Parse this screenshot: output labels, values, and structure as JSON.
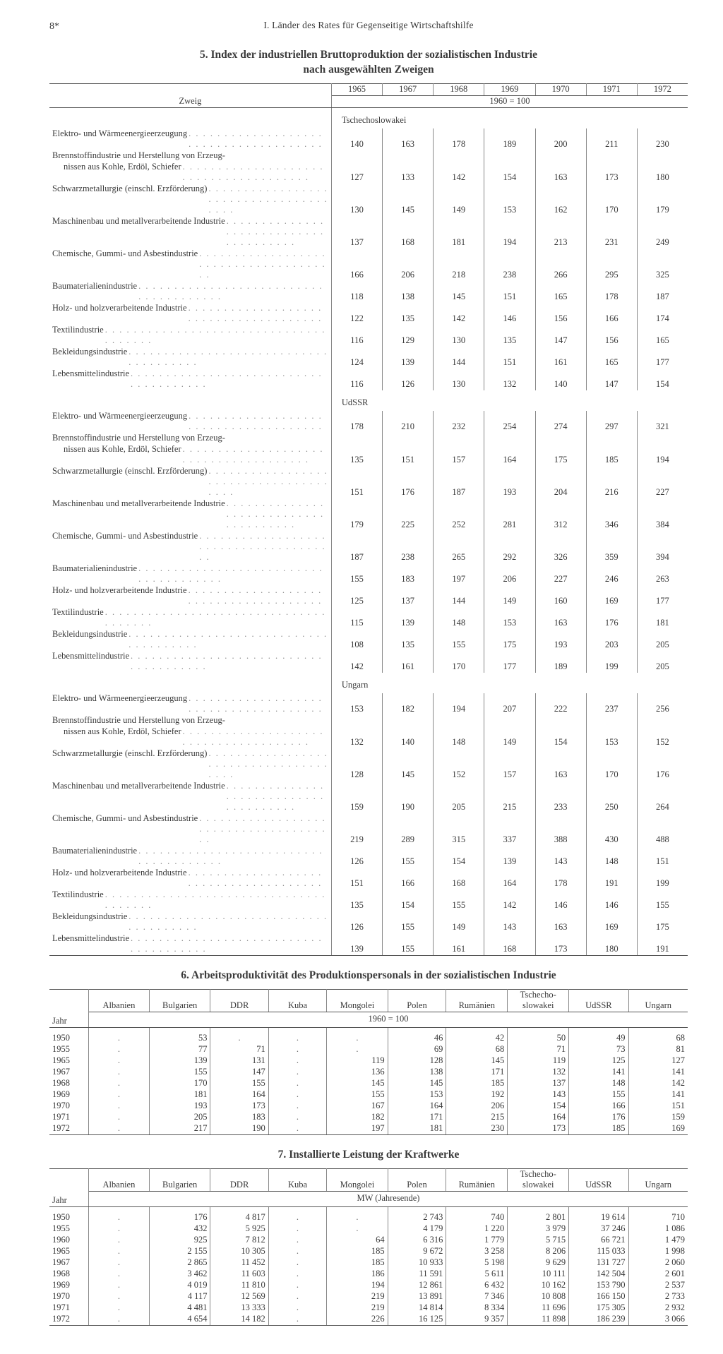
{
  "page_number": "8*",
  "running_head": "I. Länder des Rates für Gegenseitige Wirtschaftshilfe",
  "table5": {
    "title_l1": "5. Index der industriellen Bruttoproduktion der sozialistischen Industrie",
    "title_l2": "nach ausgewählten Zweigen",
    "stub_header": "Zweig",
    "years": [
      "1965",
      "1967",
      "1968",
      "1969",
      "1970",
      "1971",
      "1972"
    ],
    "base": "1960 = 100",
    "row_labels": [
      "Elektro- und Wärmeenergieerzeugung",
      "Brennstoffindustrie und Herstellung von Erzeug-",
      "nissen aus Kohle, Erdöl, Schiefer",
      "Schwarzmetallurgie (einschl. Erzförderung)",
      "Maschinenbau und metallverarbeitende Industrie",
      "Chemische, Gummi- und Asbestindustrie",
      "Baumaterialienindustrie",
      "Holz- und holzverarbeitende Industrie",
      "Textilindustrie",
      "Bekleidungsindustrie",
      "Lebensmittelindustrie"
    ],
    "sections": [
      {
        "country": "Tschechoslowakei",
        "rows": [
          [
            "140",
            "163",
            "178",
            "189",
            "200",
            "211",
            "230"
          ],
          null,
          [
            "127",
            "133",
            "142",
            "154",
            "163",
            "173",
            "180"
          ],
          [
            "130",
            "145",
            "149",
            "153",
            "162",
            "170",
            "179"
          ],
          [
            "137",
            "168",
            "181",
            "194",
            "213",
            "231",
            "249"
          ],
          [
            "166",
            "206",
            "218",
            "238",
            "266",
            "295",
            "325"
          ],
          [
            "118",
            "138",
            "145",
            "151",
            "165",
            "178",
            "187"
          ],
          [
            "122",
            "135",
            "142",
            "146",
            "156",
            "166",
            "174"
          ],
          [
            "116",
            "129",
            "130",
            "135",
            "147",
            "156",
            "165"
          ],
          [
            "124",
            "139",
            "144",
            "151",
            "161",
            "165",
            "177"
          ],
          [
            "116",
            "126",
            "130",
            "132",
            "140",
            "147",
            "154"
          ]
        ]
      },
      {
        "country": "UdSSR",
        "rows": [
          [
            "178",
            "210",
            "232",
            "254",
            "274",
            "297",
            "321"
          ],
          null,
          [
            "135",
            "151",
            "157",
            "164",
            "175",
            "185",
            "194"
          ],
          [
            "151",
            "176",
            "187",
            "193",
            "204",
            "216",
            "227"
          ],
          [
            "179",
            "225",
            "252",
            "281",
            "312",
            "346",
            "384"
          ],
          [
            "187",
            "238",
            "265",
            "292",
            "326",
            "359",
            "394"
          ],
          [
            "155",
            "183",
            "197",
            "206",
            "227",
            "246",
            "263"
          ],
          [
            "125",
            "137",
            "144",
            "149",
            "160",
            "169",
            "177"
          ],
          [
            "115",
            "139",
            "148",
            "153",
            "163",
            "176",
            "181"
          ],
          [
            "108",
            "135",
            "155",
            "175",
            "193",
            "203",
            "205"
          ],
          [
            "142",
            "161",
            "170",
            "177",
            "189",
            "199",
            "205"
          ]
        ]
      },
      {
        "country": "Ungarn",
        "rows": [
          [
            "153",
            "182",
            "194",
            "207",
            "222",
            "237",
            "256"
          ],
          null,
          [
            "132",
            "140",
            "148",
            "149",
            "154",
            "153",
            "152"
          ],
          [
            "128",
            "145",
            "152",
            "157",
            "163",
            "170",
            "176"
          ],
          [
            "159",
            "190",
            "205",
            "215",
            "233",
            "250",
            "264"
          ],
          [
            "219",
            "289",
            "315",
            "337",
            "388",
            "430",
            "488"
          ],
          [
            "126",
            "155",
            "154",
            "139",
            "143",
            "148",
            "151"
          ],
          [
            "151",
            "166",
            "168",
            "164",
            "178",
            "191",
            "199"
          ],
          [
            "135",
            "154",
            "155",
            "142",
            "146",
            "146",
            "155"
          ],
          [
            "126",
            "155",
            "149",
            "143",
            "163",
            "169",
            "175"
          ],
          [
            "139",
            "155",
            "161",
            "168",
            "173",
            "180",
            "191"
          ]
        ]
      }
    ]
  },
  "table6": {
    "title": "6. Arbeitsproduktivität des Produktionspersonals in der sozialistischen Industrie",
    "jahr": "Jahr",
    "base": "1960 = 100",
    "countries": [
      "Albanien",
      "Bulgarien",
      "DDR",
      "Kuba",
      "Mongolei",
      "Polen",
      "Rumänien",
      "Tschecho-\nslowakei",
      "UdSSR",
      "Ungarn"
    ],
    "years": [
      "1950",
      "1955",
      "1965",
      "1967",
      "1968",
      "1969",
      "1970",
      "1971",
      "1972"
    ],
    "values": [
      [
        ".",
        "53",
        ".",
        ".",
        ".",
        "46",
        "42",
        "50",
        "49",
        "68"
      ],
      [
        ".",
        "77",
        "71",
        ".",
        ".",
        "69",
        "68",
        "71",
        "73",
        "81"
      ],
      [
        ".",
        "139",
        "131",
        ".",
        "119",
        "128",
        "145",
        "119",
        "125",
        "127"
      ],
      [
        ".",
        "155",
        "147",
        ".",
        "136",
        "138",
        "171",
        "132",
        "141",
        "141"
      ],
      [
        ".",
        "170",
        "155",
        ".",
        "145",
        "145",
        "185",
        "137",
        "148",
        "142"
      ],
      [
        ".",
        "181",
        "164",
        ".",
        "155",
        "153",
        "192",
        "143",
        "155",
        "141"
      ],
      [
        ".",
        "193",
        "173",
        ".",
        "167",
        "164",
        "206",
        "154",
        "166",
        "151"
      ],
      [
        ".",
        "205",
        "183",
        ".",
        "182",
        "171",
        "215",
        "164",
        "176",
        "159"
      ],
      [
        ".",
        "217",
        "190",
        ".",
        "197",
        "181",
        "230",
        "173",
        "185",
        "169"
      ]
    ]
  },
  "table7": {
    "title": "7. Installierte Leistung der Kraftwerke",
    "jahr": "Jahr",
    "unit": "MW (Jahresende)",
    "countries": [
      "Albanien",
      "Bulgarien",
      "DDR",
      "Kuba",
      "Mongolei",
      "Polen",
      "Rumänien",
      "Tschecho-\nslowakei",
      "UdSSR",
      "Ungarn"
    ],
    "years": [
      "1950",
      "1955",
      "1960",
      "1965",
      "1967",
      "1968",
      "1969",
      "1970",
      "1971",
      "1972"
    ],
    "values": [
      [
        ".",
        "176",
        "4 817",
        ".",
        ".",
        "2 743",
        "740",
        "2 801",
        "19 614",
        "710"
      ],
      [
        ".",
        "432",
        "5 925",
        ".",
        ".",
        "4 179",
        "1 220",
        "3 979",
        "37 246",
        "1 086"
      ],
      [
        ".",
        "925",
        "7 812",
        ".",
        "64",
        "6 316",
        "1 779",
        "5 715",
        "66 721",
        "1 479"
      ],
      [
        ".",
        "2 155",
        "10 305",
        ".",
        "185",
        "9 672",
        "3 258",
        "8 206",
        "115 033",
        "1 998"
      ],
      [
        ".",
        "2 865",
        "11 452",
        ".",
        "185",
        "10 933",
        "5 198",
        "9 629",
        "131 727",
        "2 060"
      ],
      [
        ".",
        "3 462",
        "11 603",
        ".",
        "186",
        "11 591",
        "5 611",
        "10 111",
        "142 504",
        "2 601"
      ],
      [
        ".",
        "4 019",
        "11 810",
        ".",
        "194",
        "12 861",
        "6 432",
        "10 162",
        "153 790",
        "2 537"
      ],
      [
        ".",
        "4 117",
        "12 569",
        ".",
        "219",
        "13 891",
        "7 346",
        "10 808",
        "166 150",
        "2 733"
      ],
      [
        ".",
        "4 481",
        "13 333",
        ".",
        "219",
        "14 814",
        "8 334",
        "11 696",
        "175 305",
        "2 932"
      ],
      [
        ".",
        "4 654",
        "14 182",
        ".",
        "226",
        "16 125",
        "9 357",
        "11 898",
        "186 239",
        "3 066"
      ]
    ]
  }
}
